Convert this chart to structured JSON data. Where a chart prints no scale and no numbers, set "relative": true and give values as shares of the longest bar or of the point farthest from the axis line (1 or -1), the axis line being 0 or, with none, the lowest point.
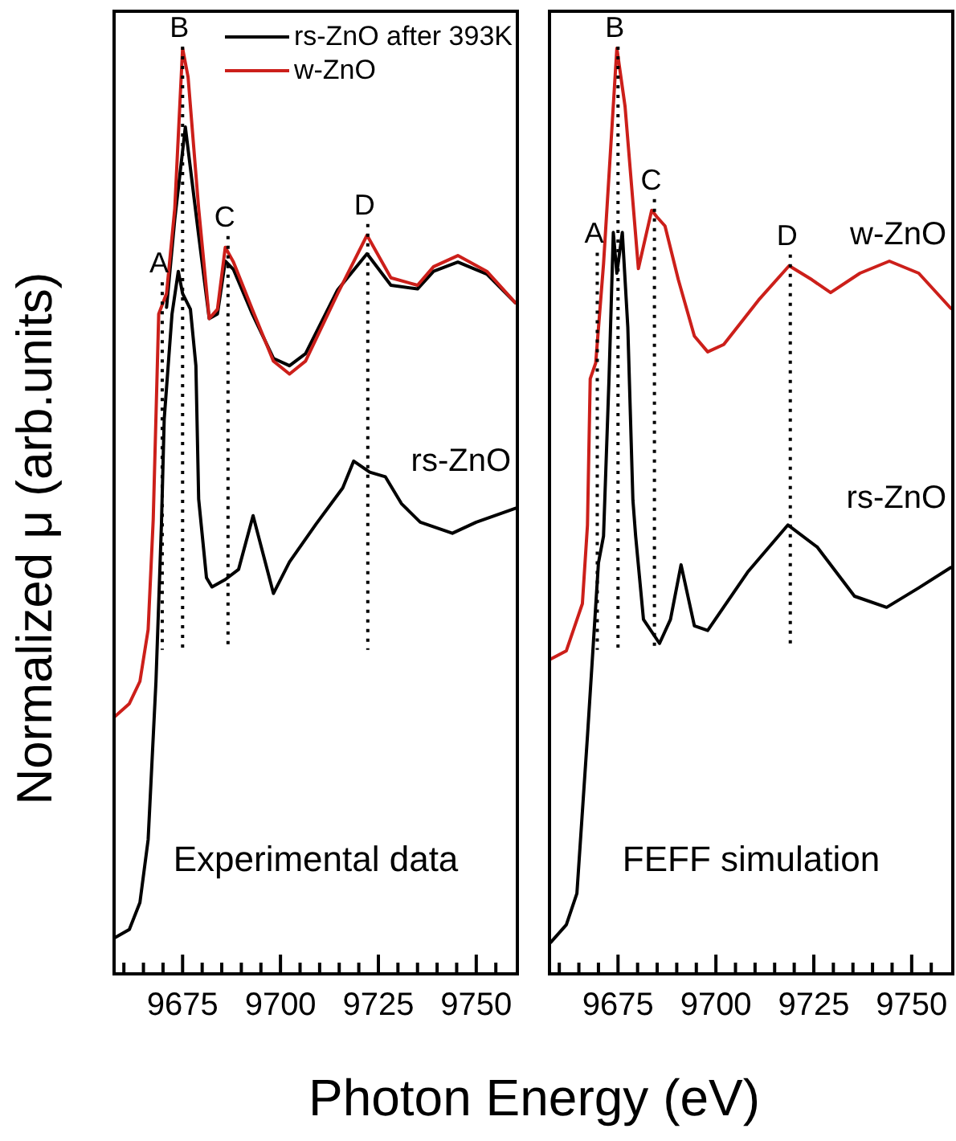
{
  "chart_data": [
    {
      "type": "line",
      "ylabel": "Normalized μ (arb.units)",
      "xlabel": "Photon Energy (eV)",
      "relative": true,
      "legend": "top right",
      "marker": "none",
      "line_style": "solid",
      "xlim": [
        9657.5,
        9760.5
      ],
      "xticks": [
        {
          "value": 9660,
          "label": null
        },
        {
          "value": 9665,
          "label": null
        },
        {
          "value": 9670,
          "label": null
        },
        9675,
        {
          "value": 9680,
          "label": null
        },
        {
          "value": 9685,
          "label": null
        },
        {
          "value": 9690,
          "label": null
        },
        {
          "value": 9695,
          "label": null
        },
        9700,
        {
          "value": 9705,
          "label": null
        },
        {
          "value": 9710,
          "label": null
        },
        {
          "value": 9715,
          "label": null
        },
        {
          "value": 9720,
          "label": null
        },
        9725,
        {
          "value": 9730,
          "label": null
        },
        {
          "value": 9735,
          "label": null
        },
        {
          "value": 9740,
          "label": null
        },
        {
          "value": 9745,
          "label": null
        },
        9750,
        {
          "value": 9755,
          "label": null
        }
      ],
      "series": [
        {
          "name": "rs-ZnO after 393K",
          "color": "#000000",
          "x": [
            9670.9,
            9673.0,
            9675.7,
            9679.1,
            9681.8,
            9683.9,
            9685.9,
            9688.0,
            9692.8,
            9698.2,
            9702.3,
            9706.4,
            9714.6,
            9722.1,
            9728.2,
            9735.0,
            9739.1,
            9745.3,
            9752.7,
            9760.0
          ],
          "values": [
            0.72,
            0.815,
            0.915,
            0.798,
            0.708,
            0.713,
            0.77,
            0.761,
            0.713,
            0.665,
            0.657,
            0.67,
            0.739,
            0.778,
            0.744,
            0.74,
            0.759,
            0.769,
            0.756,
            0.725
          ]
        },
        {
          "name": "w-ZnO",
          "color": "#cc1f1a",
          "x": [
            9657.7,
            9661.4,
            9664.1,
            9666.2,
            9667.5,
            9668.9,
            9670.9,
            9673.0,
            9675.0,
            9676.4,
            9679.1,
            9681.8,
            9683.9,
            9685.9,
            9688.0,
            9692.8,
            9698.2,
            9702.3,
            9706.4,
            9714.6,
            9722.1,
            9728.2,
            9735.0,
            9739.1,
            9745.3,
            9752.7,
            9760.0
          ],
          "values": [
            0.278,
            0.292,
            0.316,
            0.372,
            0.491,
            0.713,
            0.735,
            0.827,
            1.0,
            0.969,
            0.827,
            0.708,
            0.718,
            0.785,
            0.769,
            0.718,
            0.662,
            0.648,
            0.662,
            0.735,
            0.798,
            0.752,
            0.744,
            0.764,
            0.776,
            0.759,
            0.725
          ]
        },
        {
          "color": "#000000",
          "x": [
            9657.7,
            9661.4,
            9664.1,
            9666.2,
            9668.2,
            9669.6,
            9670.3,
            9672.3,
            9673.9,
            9675.0,
            9677.0,
            9678.4,
            9679.1,
            9681.1,
            9682.5,
            9685.9,
            9689.3,
            9693.0,
            9698.2,
            9702.3,
            9709.1,
            9715.9,
            9718.7,
            9722.8,
            9726.8,
            9730.9,
            9735.7,
            9743.9,
            9750.0,
            9760.0
          ],
          "values": [
            0.039,
            0.048,
            0.077,
            0.145,
            0.316,
            0.486,
            0.599,
            0.713,
            0.759,
            0.735,
            0.718,
            0.657,
            0.513,
            0.428,
            0.418,
            0.426,
            0.437,
            0.495,
            0.411,
            0.445,
            0.486,
            0.525,
            0.554,
            0.542,
            0.537,
            0.508,
            0.488,
            0.476,
            0.488,
            0.503
          ]
        }
      ],
      "ref_lines": [
        {
          "axis": "x",
          "value": 9669.8,
          "label": "A",
          "color": "#000000",
          "line_style": "dotted"
        },
        {
          "axis": "x",
          "value": 9675,
          "label": "B",
          "color": "#000000",
          "line_style": "dotted"
        },
        {
          "axis": "x",
          "value": 9686.6,
          "label": "C",
          "color": "#000000",
          "line_style": "dotted"
        },
        {
          "axis": "x",
          "value": 9722.3,
          "label": "D",
          "color": "#000000",
          "line_style": "dotted"
        }
      ],
      "annotations": [
        "Experimental data",
        "rs-ZnO"
      ]
    },
    {
      "type": "line",
      "relative": true,
      "legend": false,
      "marker": "none",
      "line_style": "solid",
      "xlim": [
        9657.5,
        9760.5
      ],
      "xticks": [
        {
          "value": 9660,
          "label": null
        },
        {
          "value": 9665,
          "label": null
        },
        {
          "value": 9670,
          "label": null
        },
        9675,
        {
          "value": 9680,
          "label": null
        },
        {
          "value": 9685,
          "label": null
        },
        {
          "value": 9690,
          "label": null
        },
        {
          "value": 9695,
          "label": null
        },
        9700,
        {
          "value": 9705,
          "label": null
        },
        {
          "value": 9710,
          "label": null
        },
        {
          "value": 9715,
          "label": null
        },
        {
          "value": 9720,
          "label": null
        },
        9725,
        {
          "value": 9730,
          "label": null
        },
        {
          "value": 9735,
          "label": null
        },
        {
          "value": 9740,
          "label": null
        },
        {
          "value": 9745,
          "label": null
        },
        9750,
        {
          "value": 9755,
          "label": null
        }
      ],
      "series": [
        {
          "name": "w-ZnO",
          "color": "#cc1f1a",
          "x": [
            9657.8,
            9661.8,
            9665.9,
            9667.2,
            9667.9,
            9669.3,
            9671.3,
            9674.7,
            9676.8,
            9680.2,
            9683.6,
            9684.9,
            9687.0,
            9690.4,
            9694.5,
            9697.9,
            9702.0,
            9710.9,
            9718.7,
            9724.5,
            9729.3,
            9736.8,
            9744.3,
            9751.8,
            9760.0
          ],
          "values": [
            0.34,
            0.349,
            0.4,
            0.485,
            0.643,
            0.66,
            0.767,
            1.0,
            0.937,
            0.762,
            0.825,
            0.818,
            0.808,
            0.75,
            0.689,
            0.672,
            0.68,
            0.728,
            0.765,
            0.75,
            0.736,
            0.757,
            0.77,
            0.757,
            0.719
          ]
        },
        {
          "name": "rs-ZnO",
          "color": "#000000",
          "x": [
            9657.8,
            9661.8,
            9664.5,
            9667.2,
            9670.0,
            9671.3,
            9672.7,
            9673.8,
            9674.7,
            9676.1,
            9677.5,
            9678.8,
            9679.5,
            9681.5,
            9685.6,
            9688.4,
            9691.1,
            9694.5,
            9697.9,
            9708.1,
            9718.4,
            9725.9,
            9735.4,
            9743.6,
            9751.8,
            9760.0
          ],
          "values": [
            0.034,
            0.053,
            0.087,
            0.257,
            0.444,
            0.473,
            0.643,
            0.801,
            0.757,
            0.801,
            0.699,
            0.512,
            0.473,
            0.383,
            0.357,
            0.383,
            0.442,
            0.376,
            0.371,
            0.434,
            0.485,
            0.461,
            0.408,
            0.396,
            0.417,
            0.439
          ]
        }
      ],
      "ref_lines": [
        {
          "axis": "x",
          "value": 9669.7,
          "label": "A",
          "color": "#000000",
          "line_style": "dotted"
        },
        {
          "axis": "x",
          "value": 9675,
          "label": "B",
          "color": "#000000",
          "line_style": "dotted"
        },
        {
          "axis": "x",
          "value": 9684.3,
          "label": "C",
          "color": "#000000",
          "line_style": "dotted"
        },
        {
          "axis": "x",
          "value": 9719,
          "label": "D",
          "color": "#000000",
          "line_style": "dotted"
        }
      ],
      "annotations": [
        "FEFF simulation"
      ]
    }
  ]
}
